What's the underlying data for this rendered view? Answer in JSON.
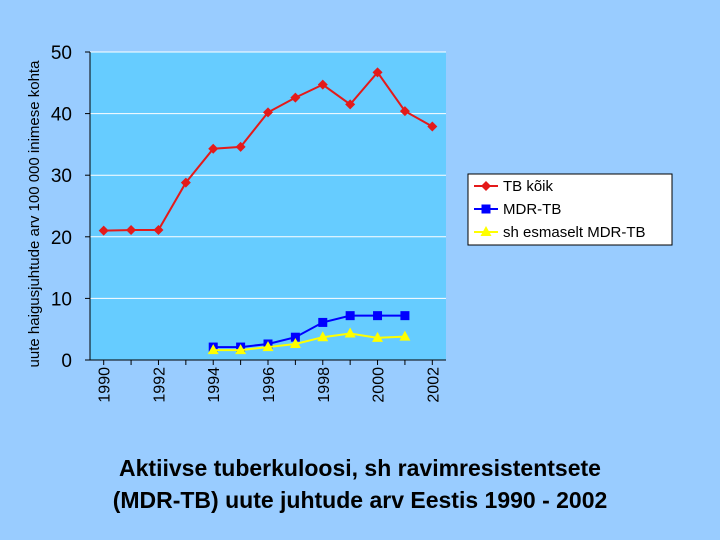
{
  "chart_data": {
    "type": "line",
    "title": "",
    "xlabel": "",
    "ylabel": "uute haigusjuhtude arv 100 000 inimese kohta",
    "ylim": [
      0,
      50
    ],
    "yticks": [
      0,
      10,
      20,
      30,
      40,
      50
    ],
    "xlim": [
      1989.5,
      2002.5
    ],
    "xticks": [
      1990,
      1992,
      1994,
      1996,
      1998,
      2000,
      2002
    ],
    "grid": true,
    "legend": "right",
    "plot_bg": "#66ccff",
    "series": [
      {
        "name": "TB kõik",
        "color": "#e41a1a",
        "marker": "diamond",
        "x": [
          1990,
          1991,
          1992,
          1993,
          1994,
          1995,
          1996,
          1997,
          1998,
          1999,
          2000,
          2001,
          2002
        ],
        "y": [
          21,
          21.1,
          21.1,
          28.8,
          34.3,
          34.6,
          40.2,
          42.6,
          44.7,
          41.5,
          46.7,
          40.4,
          37.9
        ]
      },
      {
        "name": "MDR-TB",
        "color": "#0000ff",
        "marker": "square",
        "x": [
          1994,
          1995,
          1996,
          1997,
          1998,
          1999,
          2000,
          2001
        ],
        "y": [
          2.1,
          2.1,
          2.6,
          3.7,
          6.1,
          7.2,
          7.2,
          7.2
        ]
      },
      {
        "name": "sh esmaselt MDR-TB",
        "color": "#ffff00",
        "marker": "triangle",
        "x": [
          1994,
          1995,
          1996,
          1997,
          1998,
          1999,
          2000,
          2001
        ],
        "y": [
          1.6,
          1.6,
          2.1,
          2.6,
          3.7,
          4.3,
          3.6,
          3.8
        ]
      }
    ]
  },
  "caption": {
    "line1": "Aktiivse tuberkuloosi, sh ravimresistentsete",
    "line2": "(MDR-TB) uute juhtude arv Eestis 1990 - 2002"
  }
}
